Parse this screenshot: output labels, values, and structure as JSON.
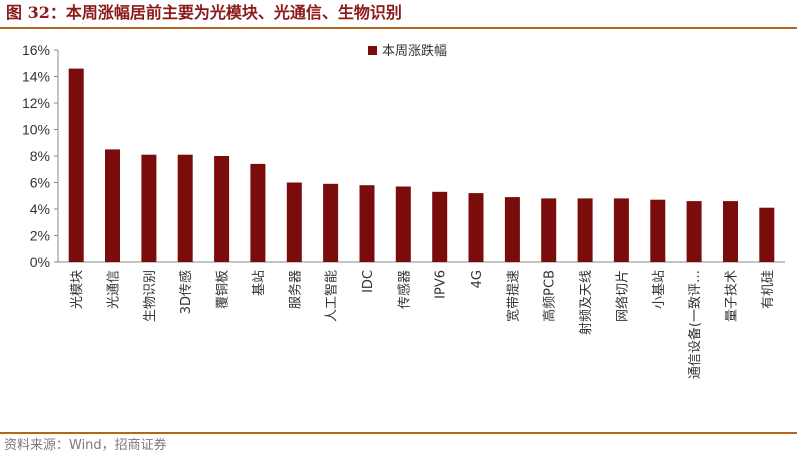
{
  "figure": {
    "title": "图 32：本周涨幅居前主要为光模块、光通信、生物识别",
    "source": "资料来源：Wind，招商证券"
  },
  "colors": {
    "bar": "#7b0c0c",
    "title": "#8b1a1a",
    "rule": "#b5651d"
  },
  "chart_data": {
    "type": "bar",
    "title": "",
    "xlabel": "",
    "ylabel": "",
    "ylim": [
      0,
      16
    ],
    "yticks": [
      "0%",
      "2%",
      "4%",
      "6%",
      "8%",
      "10%",
      "12%",
      "14%",
      "16%"
    ],
    "grid": false,
    "legend_position": "top-center",
    "categories": [
      "光模块",
      "光通信",
      "生物识别",
      "3D传感",
      "覆铜板",
      "基站",
      "服务器",
      "人工智能",
      "IDC",
      "传感器",
      "IPV6",
      "4G",
      "宽带提速",
      "高频PCB",
      "射频及天线",
      "网络切片",
      "小基站",
      "通信设备(一致评…",
      "量子技术",
      "有机硅"
    ],
    "series": [
      {
        "name": "本周涨跌幅",
        "values": [
          14.6,
          8.5,
          8.1,
          8.1,
          8.0,
          7.4,
          6.0,
          5.9,
          5.8,
          5.7,
          5.3,
          5.2,
          4.9,
          4.8,
          4.8,
          4.8,
          4.7,
          4.6,
          4.6,
          4.1
        ]
      }
    ]
  }
}
